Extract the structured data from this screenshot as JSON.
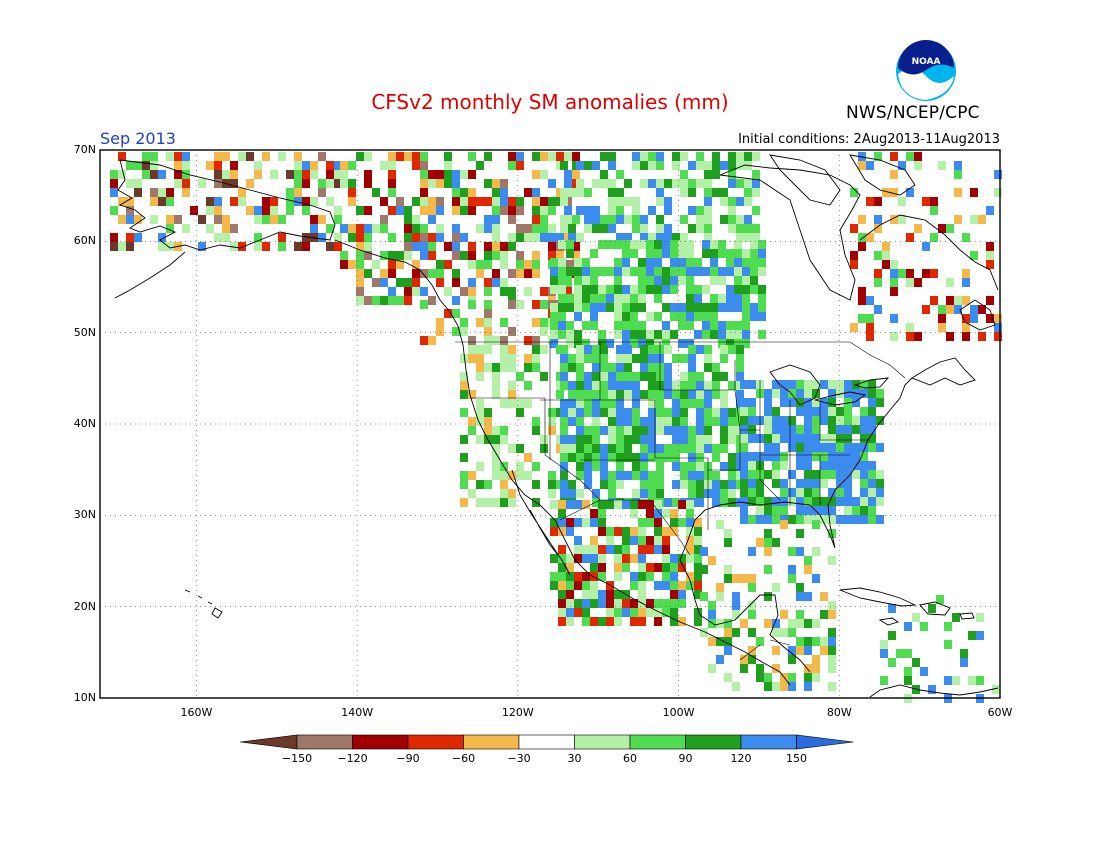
{
  "header": {
    "title": "CFSv2 monthly SM anomalies (mm)",
    "valid_month": "Sep 2013",
    "initial_conditions": "Initial conditions: 2Aug2013-11Aug2013",
    "agency": "NWS/NCEP/CPC",
    "logo_text": "NOAA"
  },
  "map": {
    "lon_range": [
      -172,
      -60
    ],
    "lat_range": [
      10,
      70
    ],
    "lat_labels": [
      "70N",
      "60N",
      "50N",
      "40N",
      "30N",
      "20N",
      "10N"
    ],
    "lon_labels": [
      "160W",
      "140W",
      "120W",
      "100W",
      "80W",
      "60W"
    ],
    "gridlines": "dotted"
  },
  "colorbar": {
    "labels": [
      "-150",
      "-120",
      "-90",
      "-60",
      "-30",
      "30",
      "60",
      "90",
      "120",
      "150"
    ],
    "colors": [
      "#6b3a2a",
      "#a0786a",
      "#a00000",
      "#e02800",
      "#ff5a1e",
      "#f5b84a",
      "#ffffff",
      "#b4f0a8",
      "#50dc50",
      "#1ea01e",
      "#3c8cf0",
      "#2a6ce0"
    ]
  }
}
